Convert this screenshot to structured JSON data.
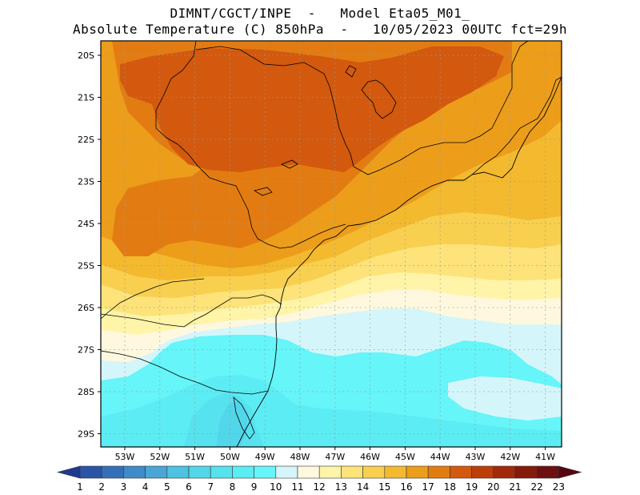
{
  "header": {
    "line1": "DIMNT/CGCT/INPE  -   Model Eta05_M01_",
    "line2": "Absolute Temperature (C) 850hPa  -   10/05/2023 00UTC fct=29h"
  },
  "axes": {
    "lat_labels": [
      "20S",
      "21S",
      "22S",
      "23S",
      "24S",
      "25S",
      "26S",
      "27S",
      "28S",
      "29S"
    ],
    "lon_labels": [
      "53W",
      "52W",
      "51W",
      "50W",
      "49W",
      "48W",
      "47W",
      "46W",
      "45W",
      "44W",
      "43W",
      "42W",
      "41W"
    ]
  },
  "colorbar": {
    "labels": [
      "1",
      "2",
      "3",
      "4",
      "5",
      "6",
      "7",
      "8",
      "9",
      "10",
      "11",
      "12",
      "13",
      "14",
      "15",
      "16",
      "17",
      "18",
      "19",
      "20",
      "21",
      "22",
      "23"
    ],
    "colors": [
      "#1f3b8f",
      "#2a55a6",
      "#3470b8",
      "#3f8bc8",
      "#4aa6d6",
      "#4ec2e1",
      "#52d6ea",
      "#57e2ef",
      "#5cecf3",
      "#66f5f8",
      "#d4f6fb",
      "#fff8df",
      "#fff4a8",
      "#fde37a",
      "#f8cf4f",
      "#f3b92f",
      "#ec9d1a",
      "#e27c12",
      "#d2590e",
      "#bb3e0b",
      "#a22a0a",
      "#861a0c",
      "#6e0f12",
      "#55070f"
    ]
  },
  "map_colors": {
    "t19": "#d2590e",
    "t18": "#e27c12",
    "t17": "#ec9d1a",
    "t16": "#f3b92f",
    "t15": "#f8cf4f",
    "t14": "#fde37a",
    "t13": "#fff4a8",
    "t12": "#fff8df",
    "t11": "#d4f6fb",
    "t10": "#66f5f8",
    "t9": "#5cecf3",
    "t8": "#57e2ef",
    "t7": "#52d6ea"
  }
}
